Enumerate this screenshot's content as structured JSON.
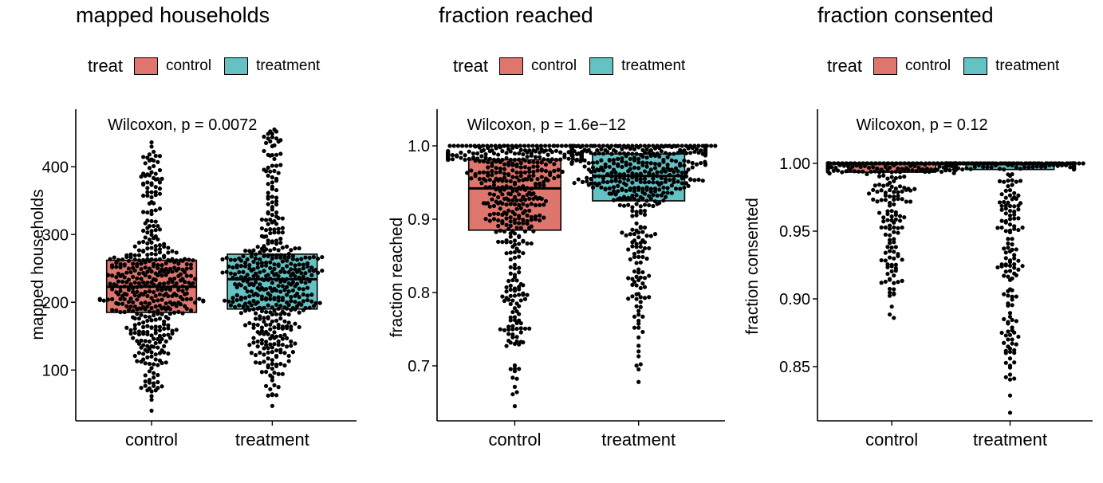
{
  "colors": {
    "control": "#DF766E",
    "treatment": "#64C1C4"
  },
  "legend": {
    "title": "treat",
    "items": [
      "control",
      "treatment"
    ]
  },
  "chart_data": [
    {
      "type": "boxplot",
      "title": "mapped households",
      "ylabel": "mapped households",
      "xlabel": "",
      "categories": [
        "control",
        "treatment"
      ],
      "ylim": [
        25,
        485
      ],
      "yticks": [
        100,
        200,
        300,
        400
      ],
      "ytick_labels": [
        "100",
        "200",
        "300",
        "400"
      ],
      "annotation": "Wilcoxon, p = 0.0072",
      "series": [
        {
          "name": "control",
          "q1": 185,
          "median": 223,
          "q3": 262,
          "min": 40,
          "max": 436,
          "n": 460
        },
        {
          "name": "treatment",
          "q1": 190,
          "median": 234,
          "q3": 271,
          "min": 47,
          "max": 455,
          "n": 470
        }
      ]
    },
    {
      "type": "boxplot",
      "title": "fraction reached",
      "ylabel": "fraction reached",
      "xlabel": "",
      "categories": [
        "control",
        "treatment"
      ],
      "ylim": [
        0.625,
        1.05
      ],
      "yticks": [
        0.7,
        0.8,
        0.9,
        1.0
      ],
      "ytick_labels": [
        "0.7",
        "0.8",
        "0.9",
        "1.0"
      ],
      "annotation": "Wilcoxon, p = 1.6e−12",
      "series": [
        {
          "name": "control",
          "q1": 0.885,
          "median": 0.942,
          "q3": 0.981,
          "min": 0.645,
          "max": 1.0,
          "n": 460
        },
        {
          "name": "treatment",
          "q1": 0.925,
          "median": 0.959,
          "q3": 0.989,
          "min": 0.678,
          "max": 1.0,
          "n": 470
        }
      ]
    },
    {
      "type": "boxplot",
      "title": "fraction consented",
      "ylabel": "fraction consented",
      "xlabel": "",
      "categories": [
        "control",
        "treatment"
      ],
      "ylim": [
        0.81,
        1.04
      ],
      "yticks": [
        0.85,
        0.9,
        0.95,
        1.0
      ],
      "ytick_labels": [
        "0.85",
        "0.90",
        "0.95",
        "1.00"
      ],
      "annotation": "Wilcoxon, p = 0.12",
      "series": [
        {
          "name": "control",
          "q1": 0.9935,
          "median": 1.0,
          "q3": 1.0,
          "min": 0.886,
          "max": 1.0,
          "n": 460
        },
        {
          "name": "treatment",
          "q1": 0.9955,
          "median": 1.0,
          "q3": 1.0,
          "min": 0.816,
          "max": 1.0,
          "n": 470
        }
      ]
    }
  ]
}
